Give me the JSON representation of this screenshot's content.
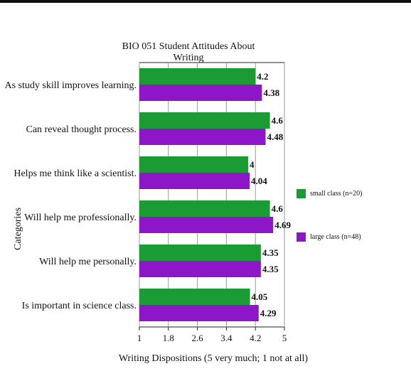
{
  "chart_data": {
    "type": "bar",
    "orientation": "horizontal",
    "title": "BIO 051 Student Attitudes About Writing",
    "xlabel": "Writing Dispositions (5 very much; 1 not at all)",
    "ylabel": "Categories",
    "xlim": [
      1,
      5
    ],
    "xticks": [
      "1",
      "1.8",
      "2.6",
      "3.4",
      "4.2",
      "5"
    ],
    "grid": true,
    "legend_position": "right",
    "categories": [
      "As study skill improves learning.",
      "Can reveal thought process.",
      "Helps me think like a scientist.",
      "Will help me professionally.",
      "Will help me personally.",
      "Is important in science class."
    ],
    "series": [
      {
        "name": "small class (n=20)",
        "color": "#1a9b34",
        "values": [
          4.2,
          4.6,
          4,
          4.6,
          4.35,
          4.05
        ],
        "labels": [
          "4.2",
          "4.6",
          "4",
          "4.6",
          "4.35",
          "4.05"
        ]
      },
      {
        "name": "large class (n=48)",
        "color": "#8e16c9",
        "values": [
          4.38,
          4.48,
          4.04,
          4.69,
          4.35,
          4.29
        ],
        "labels": [
          "4.38",
          "4.48",
          "4.04",
          "4.69",
          "4.35",
          "4.29"
        ]
      }
    ]
  }
}
